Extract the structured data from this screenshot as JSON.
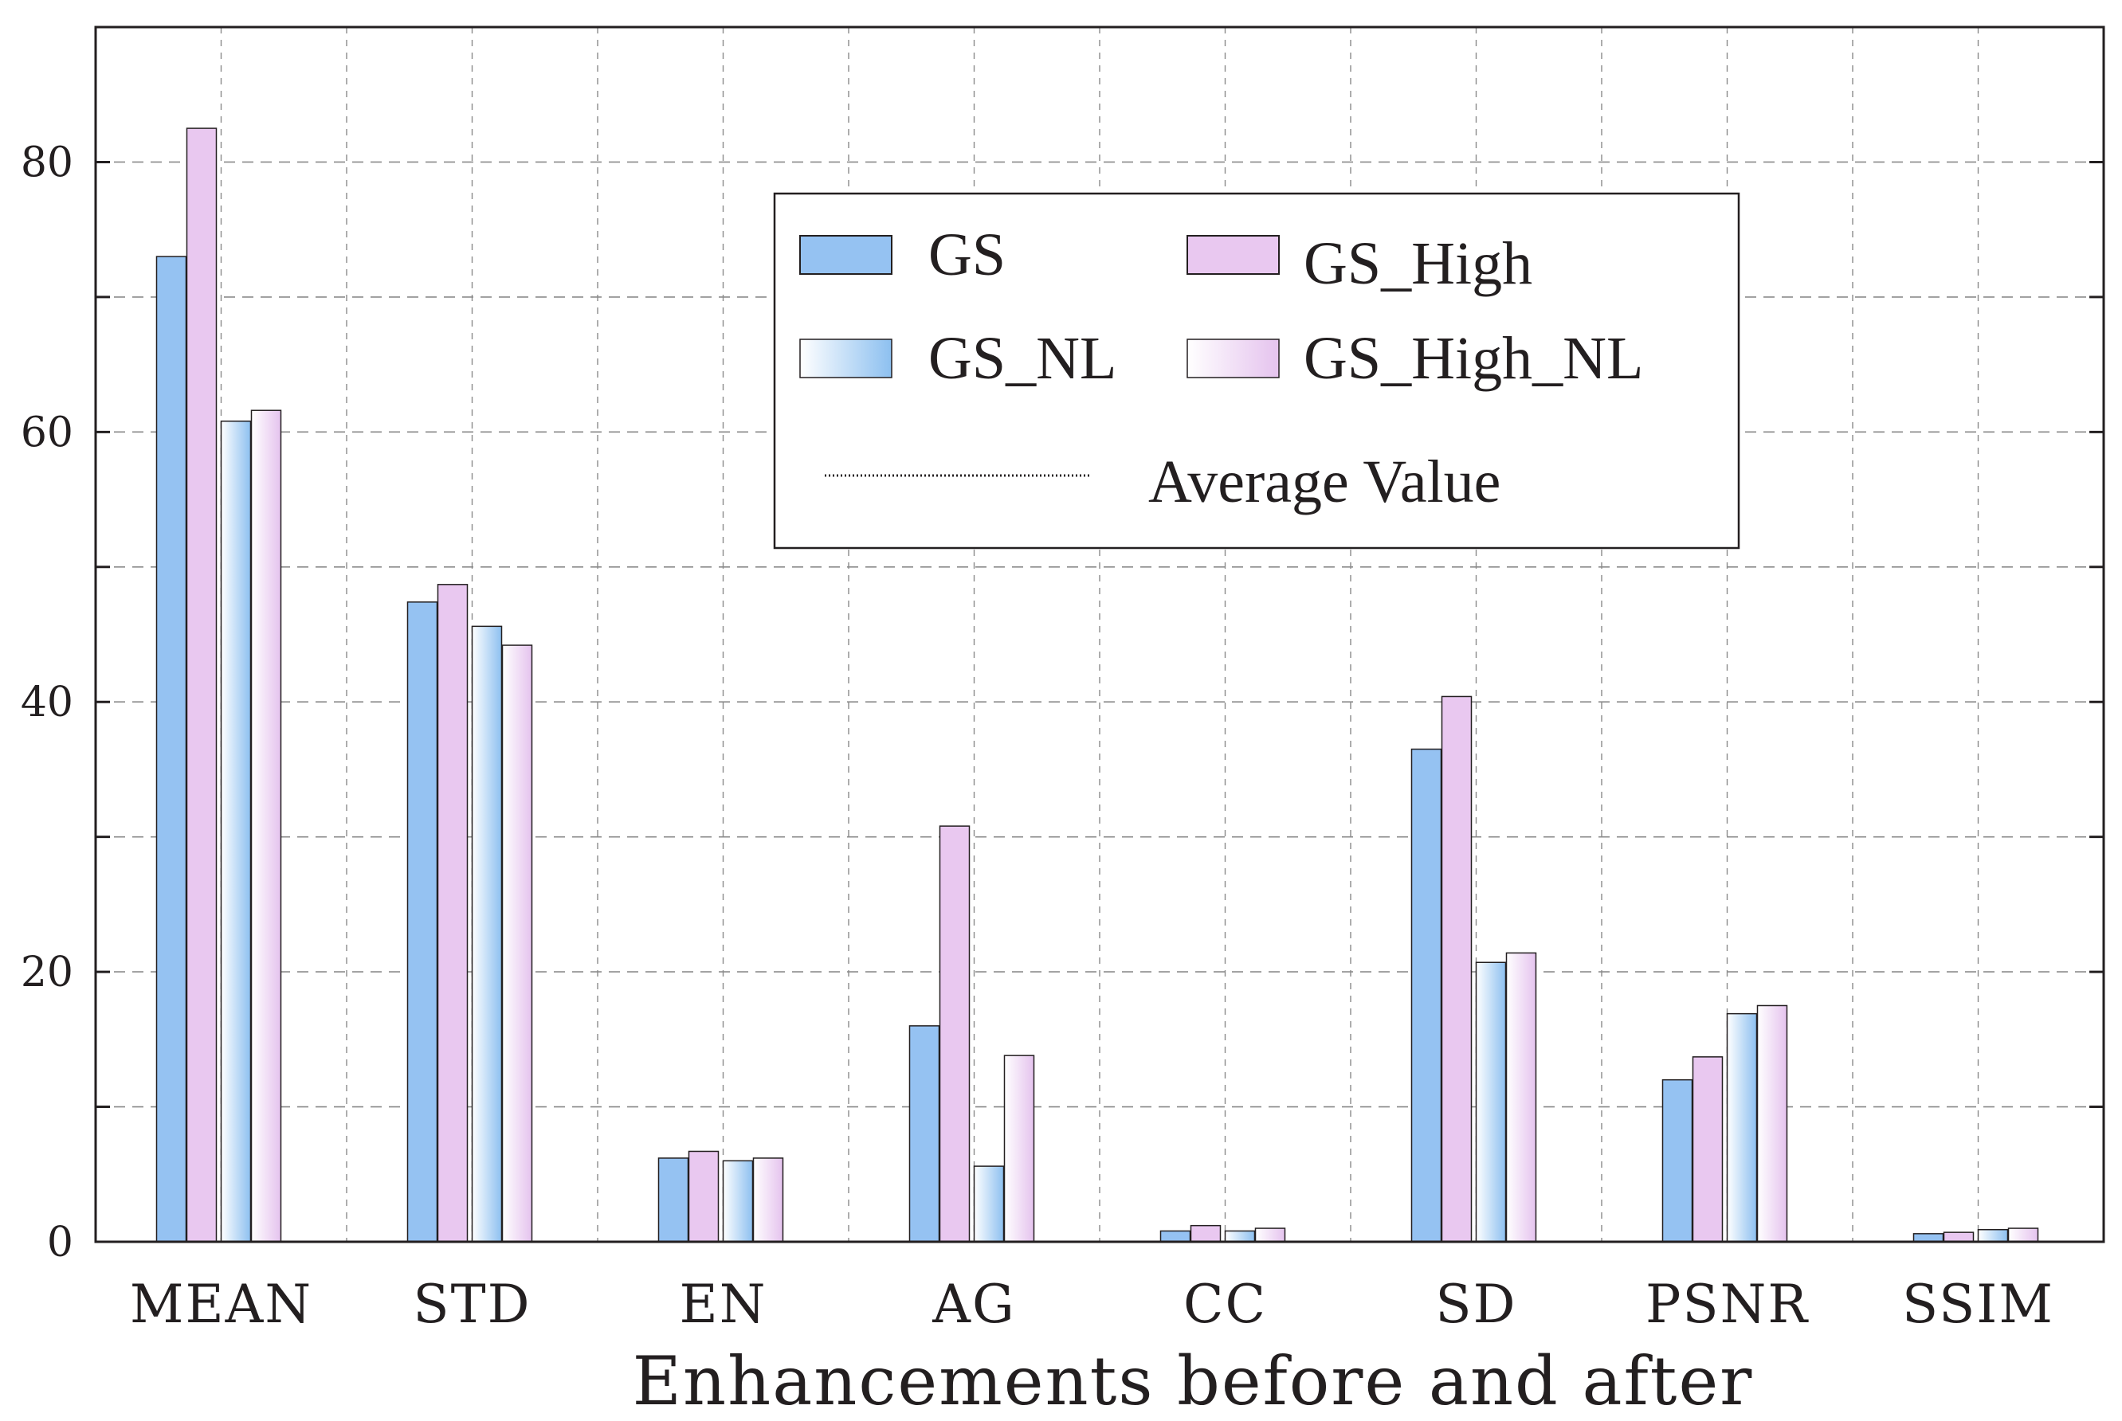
{
  "chart_data": {
    "type": "bar",
    "title": "",
    "xlabel": "Enhancements before and after",
    "ylabel": "",
    "ylim": [
      0,
      90
    ],
    "yticks": [
      0,
      20,
      40,
      60,
      80
    ],
    "grid": true,
    "legend_position": "top-center",
    "categories": [
      "MEAN",
      "STD",
      "EN",
      "AG",
      "CC",
      "SD",
      "PSNR",
      "SSIM"
    ],
    "series": [
      {
        "name": "GS",
        "values": [
          73.0,
          47.4,
          6.2,
          16.0,
          0.8,
          36.5,
          12.0,
          0.6
        ]
      },
      {
        "name": "GS_High",
        "values": [
          82.5,
          48.7,
          6.7,
          30.8,
          1.2,
          40.4,
          13.7,
          0.7
        ]
      },
      {
        "name": "GS_NL",
        "values": [
          60.8,
          45.6,
          6.0,
          5.6,
          0.8,
          20.7,
          16.9,
          0.9
        ]
      },
      {
        "name": "GS_High_NL",
        "values": [
          61.6,
          44.2,
          6.2,
          13.8,
          1.0,
          21.4,
          17.5,
          1.0
        ]
      }
    ],
    "average_value_label": "Average Value",
    "colors": {
      "GS": "#95c2f2",
      "GS_High": "#e9c8f0",
      "GS_NL": "#8dc0f0",
      "GS_High_NL": "#e5c3ee",
      "axis": "#231f20",
      "grid": "#8a8a8a"
    }
  }
}
